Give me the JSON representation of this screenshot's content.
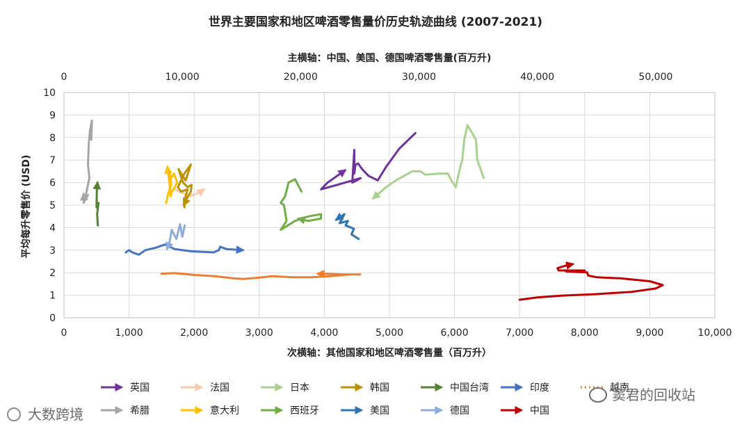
{
  "chart_data": {
    "type": "line",
    "title": "世界主要国家和地区啤酒零售量价历史轨迹曲线 (2007-2021)",
    "x_secondary_label": "主横轴：中国、美国、德国啤酒零售量(百万升)",
    "xlabel": "次横轴：其他国家和地区啤酒零售量（百万升）",
    "ylabel": "平均每升零售价 (USD)",
    "xlim": [
      0,
      10000
    ],
    "x2lim": [
      0,
      55000
    ],
    "ylim": [
      0,
      10
    ],
    "x_ticks": [
      "0",
      "1,000",
      "2,000",
      "3,000",
      "4,000",
      "5,000",
      "6,000",
      "7,000",
      "8,000",
      "9,000",
      "10,000"
    ],
    "x2_ticks": [
      "0",
      "10,000",
      "20,000",
      "30,000",
      "40,000",
      "50,000"
    ],
    "y_ticks": [
      "0",
      "1",
      "2",
      "3",
      "4",
      "5",
      "6",
      "7",
      "8",
      "9",
      "10"
    ],
    "grid": true,
    "legend_position": "bottom",
    "series": [
      {
        "name": "英国",
        "color": "#7030a0",
        "axis": "x",
        "points": [
          [
            5400,
            8.2
          ],
          [
            5150,
            7.5
          ],
          [
            4950,
            6.7
          ],
          [
            4820,
            6.1
          ],
          [
            4680,
            6.3
          ],
          [
            4580,
            6.6
          ],
          [
            4520,
            6.85
          ],
          [
            4480,
            6.8
          ],
          [
            4460,
            6.4
          ],
          [
            4460,
            7.45
          ],
          [
            4430,
            6.0
          ],
          [
            4500,
            6.1
          ],
          [
            4560,
            6.2
          ],
          [
            4200,
            5.9
          ],
          [
            3950,
            5.7
          ],
          [
            4050,
            6.0
          ],
          [
            4320,
            6.55
          ]
        ]
      },
      {
        "name": "法国",
        "color": "#f8cbad",
        "axis": "x",
        "points": [
          [
            1700,
            5.7
          ],
          [
            1850,
            5.5
          ],
          [
            1950,
            5.4
          ],
          [
            2100,
            5.6
          ],
          [
            2150,
            5.7
          ]
        ]
      },
      {
        "name": "日本",
        "color": "#a9d18e",
        "axis": "x",
        "points": [
          [
            6450,
            6.2
          ],
          [
            6350,
            7.0
          ],
          [
            6330,
            7.9
          ],
          [
            6200,
            8.55
          ],
          [
            6150,
            7.9
          ],
          [
            6120,
            7.0
          ],
          [
            6080,
            6.6
          ],
          [
            6020,
            5.8
          ],
          [
            5950,
            6.1
          ],
          [
            5900,
            6.4
          ],
          [
            5780,
            6.4
          ],
          [
            5550,
            6.35
          ],
          [
            5480,
            6.5
          ],
          [
            5350,
            6.5
          ],
          [
            5100,
            6.1
          ],
          [
            4950,
            5.8
          ],
          [
            4750,
            5.3
          ]
        ]
      },
      {
        "name": "韩国",
        "color": "#bf9000",
        "axis": "x",
        "points": [
          [
            1850,
            4.9
          ],
          [
            1860,
            5.3
          ],
          [
            1900,
            5.7
          ],
          [
            1800,
            5.6
          ],
          [
            1750,
            5.8
          ],
          [
            1850,
            6.4
          ],
          [
            1950,
            6.8
          ],
          [
            1870,
            6.1
          ],
          [
            1800,
            6.4
          ],
          [
            1760,
            6.6
          ],
          [
            1830,
            6.0
          ],
          [
            1900,
            5.8
          ],
          [
            1960,
            5.9
          ],
          [
            1950,
            5.6
          ],
          [
            1890,
            5.3
          ],
          [
            1840,
            5.0
          ]
        ]
      },
      {
        "name": "中国台湾",
        "color": "#548235",
        "axis": "x",
        "points": [
          [
            520,
            4.1
          ],
          [
            510,
            4.6
          ],
          [
            530,
            5.1
          ],
          [
            500,
            4.9
          ],
          [
            505,
            5.7
          ],
          [
            515,
            6.0
          ]
        ]
      },
      {
        "name": "印度",
        "color": "#4472c4",
        "axis": "x",
        "points": [
          [
            950,
            2.9
          ],
          [
            1000,
            3.0
          ],
          [
            1050,
            2.9
          ],
          [
            1150,
            2.8
          ],
          [
            1250,
            3.0
          ],
          [
            1400,
            3.1
          ],
          [
            1550,
            3.25
          ],
          [
            1700,
            3.05
          ],
          [
            1950,
            2.95
          ],
          [
            2300,
            2.9
          ],
          [
            2380,
            3.0
          ],
          [
            2400,
            3.15
          ],
          [
            2500,
            3.05
          ],
          [
            2750,
            3.0
          ]
        ]
      },
      {
        "name": "越南",
        "color": "#ed7d31",
        "axis": "x",
        "points": [
          [
            1500,
            1.95
          ],
          [
            1700,
            1.98
          ],
          [
            2000,
            1.9
          ],
          [
            2300,
            1.85
          ],
          [
            2600,
            1.75
          ],
          [
            2750,
            1.72
          ],
          [
            3000,
            1.78
          ],
          [
            3200,
            1.85
          ],
          [
            3500,
            1.8
          ],
          [
            3800,
            1.8
          ],
          [
            4100,
            1.85
          ],
          [
            4400,
            1.92
          ],
          [
            4550,
            1.92
          ],
          [
            4300,
            1.92
          ],
          [
            4000,
            1.95
          ],
          [
            3900,
            1.95
          ]
        ]
      },
      {
        "name": "希腊",
        "color": "#a5a5a5",
        "axis": "x",
        "points": [
          [
            420,
            7.9
          ],
          [
            430,
            8.75
          ],
          [
            400,
            8.3
          ],
          [
            380,
            7.7
          ],
          [
            370,
            6.8
          ],
          [
            390,
            6.2
          ],
          [
            340,
            5.5
          ],
          [
            300,
            5.1
          ],
          [
            340,
            5.3
          ],
          [
            370,
            5.45
          ],
          [
            310,
            5.15
          ],
          [
            300,
            5.5
          ]
        ]
      },
      {
        "name": "意大利",
        "color": "#ffc000",
        "axis": "x",
        "points": [
          [
            1570,
            5.1
          ],
          [
            1600,
            5.5
          ],
          [
            1650,
            5.9
          ],
          [
            1620,
            6.5
          ],
          [
            1600,
            6.6
          ],
          [
            1650,
            6.2
          ],
          [
            1690,
            6.4
          ],
          [
            1740,
            6.0
          ],
          [
            1700,
            5.8
          ],
          [
            1660,
            5.6
          ],
          [
            1640,
            5.4
          ],
          [
            1620,
            6.0
          ],
          [
            1590,
            6.7
          ]
        ]
      },
      {
        "name": "西班牙",
        "color": "#70ad47",
        "axis": "x",
        "points": [
          [
            3650,
            5.6
          ],
          [
            3550,
            6.15
          ],
          [
            3450,
            6.0
          ],
          [
            3400,
            5.4
          ],
          [
            3330,
            5.1
          ],
          [
            3380,
            5.0
          ],
          [
            3420,
            4.3
          ],
          [
            3330,
            3.9
          ],
          [
            3550,
            4.3
          ],
          [
            3760,
            4.5
          ],
          [
            3950,
            4.6
          ],
          [
            3950,
            4.4
          ],
          [
            3750,
            4.3
          ],
          [
            3600,
            4.4
          ]
        ]
      },
      {
        "name": "美国",
        "color": "#2e75b6",
        "axis": "x2",
        "points": [
          [
            24900,
            3.5
          ],
          [
            24300,
            3.7
          ],
          [
            24500,
            3.95
          ],
          [
            23800,
            4.1
          ],
          [
            24000,
            4.3
          ],
          [
            23300,
            4.2
          ],
          [
            23700,
            4.6
          ],
          [
            23000,
            4.35
          ]
        ]
      },
      {
        "name": "德国",
        "color": "#8faadc",
        "axis": "x2",
        "points": [
          [
            10200,
            4.1
          ],
          [
            10000,
            3.6
          ],
          [
            9800,
            4.15
          ],
          [
            9500,
            3.5
          ],
          [
            9100,
            3.9
          ],
          [
            8900,
            3.3
          ],
          [
            8700,
            3.05
          ]
        ]
      },
      {
        "name": "中国",
        "color": "#c00000",
        "axis": "x2",
        "points": [
          [
            38500,
            0.8
          ],
          [
            40000,
            0.9
          ],
          [
            42000,
            0.98
          ],
          [
            45000,
            1.05
          ],
          [
            48000,
            1.15
          ],
          [
            50000,
            1.3
          ],
          [
            50600,
            1.45
          ],
          [
            49500,
            1.62
          ],
          [
            47000,
            1.75
          ],
          [
            45000,
            1.8
          ],
          [
            44300,
            1.87
          ],
          [
            44200,
            2.02
          ],
          [
            42500,
            2.05
          ],
          [
            42300,
            2.1
          ],
          [
            44000,
            2.1
          ],
          [
            42500,
            2.1
          ],
          [
            41800,
            2.1
          ],
          [
            41700,
            2.2
          ],
          [
            42300,
            2.3
          ],
          [
            43000,
            2.38
          ]
        ]
      }
    ]
  },
  "watermark": {
    "left_text": "大数跨境",
    "right_text": "窦君的回收站"
  }
}
